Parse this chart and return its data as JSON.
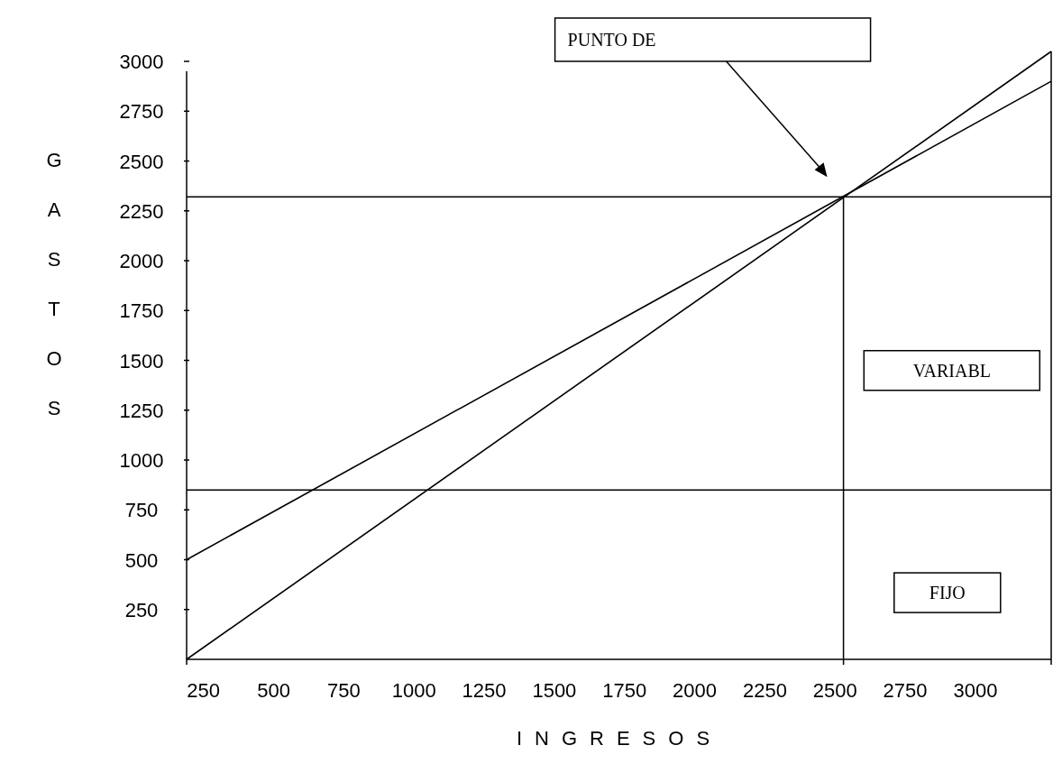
{
  "chart_data": {
    "type": "line",
    "xlabel": "INGRESOS",
    "ylabel": "GASTOS",
    "xlim": [
      190,
      3270
    ],
    "x": [
      190,
      3270
    ],
    "xticks": [
      250,
      500,
      750,
      1000,
      1250,
      1500,
      1750,
      2000,
      2250,
      2500,
      2750,
      3000
    ],
    "ylim": [
      0,
      3050
    ],
    "yticks": [
      250,
      500,
      750,
      1000,
      1250,
      1500,
      1750,
      2000,
      2250,
      2500,
      2750,
      3000
    ],
    "series": [
      {
        "color": "#000000",
        "values": [
          0,
          3050
        ]
      },
      {
        "color": "#000000",
        "values": [
          500,
          2900
        ]
      }
    ],
    "ref_lines": [
      {
        "axis": "y",
        "value": 850,
        "color": "#000000"
      },
      {
        "axis": "y",
        "value": 2320,
        "color": "#000000"
      },
      {
        "axis": "x",
        "value": 2530,
        "color": "#000000"
      },
      {
        "axis": "x",
        "value": 3270,
        "color": "#000000"
      }
    ],
    "annotations": [
      "PUNTO DE",
      "VARIABL",
      "FIJO"
    ],
    "grid": false,
    "legend": false,
    "line_style": "solid",
    "marker": "none"
  }
}
